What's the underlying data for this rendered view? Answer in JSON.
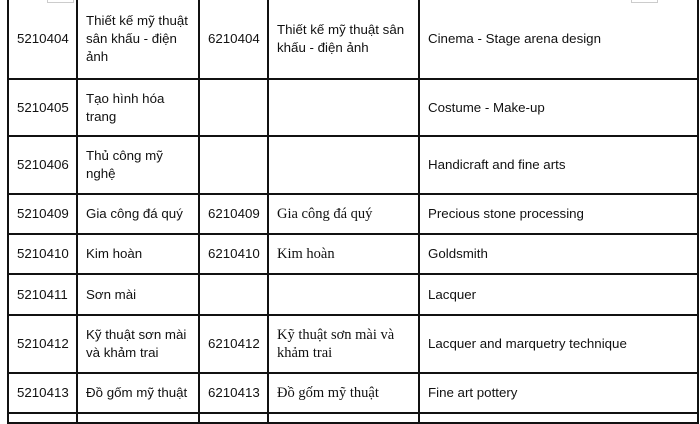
{
  "table": {
    "rows": [
      {
        "code5": "5210404",
        "name5": "Thiết kế mỹ thuật sân khấu - điện ảnh",
        "code6": "6210404",
        "name6": "Thiết kế mỹ thuật sân khấu - điện ảnh",
        "english": "Cinema - Stage arena design"
      },
      {
        "code5": "5210405",
        "name5": "Tạo hình hóa trang",
        "code6": "",
        "name6": "",
        "english": "Costume - Make-up"
      },
      {
        "code5": "5210406",
        "name5": "Thủ công mỹ nghệ",
        "code6": "",
        "name6": "",
        "english": "Handicraft and fine arts"
      },
      {
        "code5": "5210409",
        "name5": "Gia công đá quý",
        "code6": "6210409",
        "name6": "Gia công đá quý",
        "english": "Precious stone processing"
      },
      {
        "code5": "5210410",
        "name5": "Kim hoàn",
        "code6": "6210410",
        "name6": "Kim hoàn",
        "english": "Goldsmith"
      },
      {
        "code5": "5210411",
        "name5": "Sơn mài",
        "code6": "",
        "name6": "",
        "english": "Lacquer"
      },
      {
        "code5": "5210412",
        "name5": "Kỹ thuật sơn mài và khảm trai",
        "code6": "6210412",
        "name6": "Kỹ thuật sơn mài và khảm trai",
        "english": "Lacquer and marquetry technique"
      },
      {
        "code5": "5210413",
        "name5": "Đồ gốm mỹ thuật",
        "code6": "6210413",
        "name6": "Đồ gốm mỹ thuật",
        "english": "Fine art pottery"
      }
    ]
  }
}
